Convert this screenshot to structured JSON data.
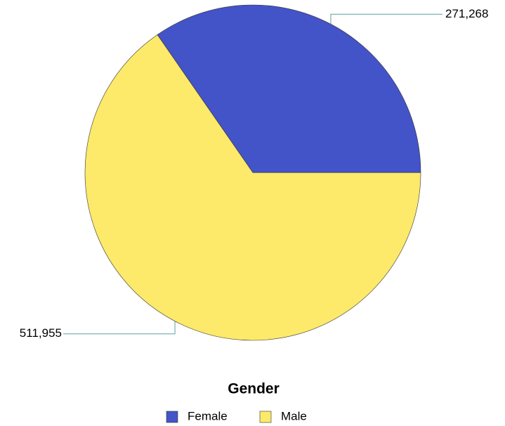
{
  "chart_data": {
    "type": "pie",
    "categories": [
      "Female",
      "Male"
    ],
    "values": [
      271268,
      511955
    ],
    "value_labels": [
      "271,268",
      "511,955"
    ],
    "colors": [
      "#4353c8",
      "#fde96a"
    ],
    "legend_title": "Gender",
    "legend": "bottom"
  }
}
